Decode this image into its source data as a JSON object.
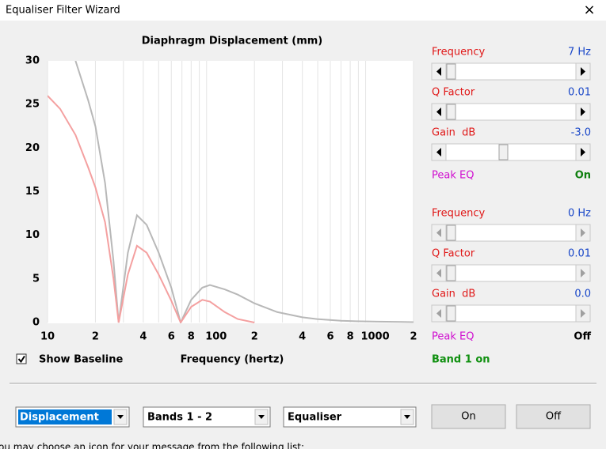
{
  "window": {
    "title": "Equaliser Filter Wizard",
    "close": "×"
  },
  "chart_data": {
    "type": "line",
    "title": "Diaphragm Displacement (mm)",
    "x_label": "Frequency (hertz)",
    "log_x": true,
    "xlim": [
      10,
      2000
    ],
    "ylim": [
      0,
      30
    ],
    "yticks": [
      0,
      5,
      10,
      15,
      20,
      25,
      30
    ],
    "xticks": [
      10,
      {
        "value": 20,
        "label": "2"
      },
      {
        "value": 40,
        "label": "4"
      },
      {
        "value": 60,
        "label": "6"
      },
      {
        "value": 80,
        "label": "8"
      },
      100,
      {
        "value": 200,
        "label": "2"
      },
      {
        "value": 400,
        "label": "4"
      },
      {
        "value": 600,
        "label": "6"
      },
      {
        "value": 800,
        "label": "8"
      },
      1000,
      {
        "value": 2000,
        "label": "2"
      }
    ],
    "xminor": [
      30,
      50,
      70,
      90,
      300,
      500,
      700,
      900
    ],
    "grid": true,
    "x": [
      10,
      12,
      15,
      18,
      20,
      23,
      26,
      28,
      32,
      36.5,
      42,
      50,
      60,
      68.7,
      80,
      94,
      105,
      130,
      157,
      200,
      278,
      400,
      494,
      700,
      870,
      1200,
      2000
    ],
    "series": [
      {
        "color": "#b8b8b8",
        "values": [
          null,
          null,
          30,
          25.5,
          22.5,
          16,
          7,
          0,
          8,
          12.3,
          11.2,
          8,
          4,
          0,
          2.6,
          4,
          4.3,
          3.8,
          3.2,
          2.2,
          1.2,
          0.6,
          0.4,
          0.2,
          0.15,
          0.1,
          0.05
        ]
      },
      {
        "color": "#f4a0a0",
        "values": [
          26,
          24.5,
          21.5,
          17.8,
          15.5,
          11.5,
          5,
          0,
          5.5,
          8.8,
          8,
          5.5,
          2.5,
          0,
          1.8,
          2.6,
          2.4,
          1.2,
          0.4,
          0,
          null,
          null,
          null,
          null,
          null,
          null,
          null
        ]
      }
    ]
  },
  "bands": [
    {
      "frequency_label": "Frequency",
      "frequency_value": "7 Hz",
      "q_label": "Q Factor",
      "q_value": "0.01",
      "gain_label": "Gain  dB",
      "gain_value": "-3.0",
      "type_label": "Peak EQ",
      "state": "On"
    },
    {
      "frequency_label": "Frequency",
      "frequency_value": "0 Hz",
      "q_label": "Q Factor",
      "q_value": "0.01",
      "gain_label": "Gain  dB",
      "gain_value": "0.0",
      "type_label": "Peak EQ",
      "state": "Off"
    }
  ],
  "show_baseline": "Show Baseline",
  "status": "Band 1 on",
  "dropdowns": [
    "Displacement",
    "Bands 1 - 2",
    "Equaliser"
  ],
  "buttons": [
    "On",
    "Off"
  ],
  "footer_text": "ou may choose an icon for your message from the following list:"
}
